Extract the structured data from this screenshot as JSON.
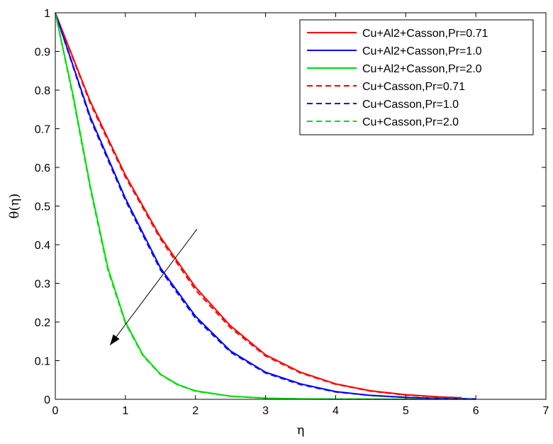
{
  "chart_data": {
    "type": "line",
    "xlabel": "η",
    "ylabel": "θ(η)",
    "xlim": [
      0,
      7
    ],
    "ylim": [
      0,
      1
    ],
    "xticks": [
      "0",
      "1",
      "2",
      "3",
      "4",
      "5",
      "6",
      "7"
    ],
    "yticks": [
      "0",
      "0.1",
      "0.2",
      "0.3",
      "0.4",
      "0.5",
      "0.6",
      "0.7",
      "0.8",
      "0.9",
      "1"
    ],
    "grid": false,
    "legend_position": "top-right",
    "series": [
      {
        "name": "Cu+Al2+Casson,Pr=0.71",
        "color": "#ff0000",
        "dash": "solid",
        "x": [
          0,
          0.5,
          1,
          1.5,
          2,
          2.5,
          3,
          3.5,
          4,
          4.5,
          5,
          5.5,
          5.8
        ],
        "y": [
          1,
          0.77,
          0.58,
          0.42,
          0.29,
          0.19,
          0.115,
          0.07,
          0.04,
          0.022,
          0.012,
          0.006,
          0.004
        ]
      },
      {
        "name": "Cu+Al2+Casson,Pr=1.0",
        "color": "#0000ff",
        "dash": "solid",
        "x": [
          0,
          0.5,
          1,
          1.5,
          2,
          2.5,
          3,
          3.5,
          4,
          4.5,
          5,
          5.5,
          6
        ],
        "y": [
          1,
          0.73,
          0.52,
          0.34,
          0.215,
          0.125,
          0.07,
          0.04,
          0.02,
          0.01,
          0.005,
          0.002,
          0.001
        ]
      },
      {
        "name": "Cu+Al2+Casson,Pr=2.0",
        "color": "#00dd00",
        "dash": "solid",
        "x": [
          0,
          0.25,
          0.5,
          0.75,
          1,
          1.25,
          1.5,
          1.75,
          2,
          2.5,
          3,
          3.5,
          4,
          5,
          6
        ],
        "y": [
          1,
          0.79,
          0.55,
          0.34,
          0.2,
          0.115,
          0.065,
          0.038,
          0.022,
          0.008,
          0.003,
          0.001,
          0.0005,
          0.0002,
          0.0001
        ]
      },
      {
        "name": "Cu+Casson,Pr=0.71",
        "color": "#ff0000",
        "dash": "dashed",
        "x": [
          0,
          0.5,
          1,
          1.5,
          2,
          2.5,
          3,
          3.5,
          4,
          4.5,
          5,
          5.5,
          5.8
        ],
        "y": [
          1,
          0.765,
          0.575,
          0.415,
          0.283,
          0.185,
          0.112,
          0.068,
          0.039,
          0.021,
          0.011,
          0.006,
          0.004
        ]
      },
      {
        "name": "Cu+Casson,Pr=1.0",
        "color": "#0000ff",
        "dash": "dashed",
        "x": [
          0,
          0.5,
          1,
          1.5,
          2,
          2.5,
          3,
          3.5,
          4,
          4.5,
          5,
          5.5,
          6
        ],
        "y": [
          1,
          0.725,
          0.515,
          0.335,
          0.21,
          0.122,
          0.068,
          0.038,
          0.019,
          0.01,
          0.005,
          0.002,
          0.001
        ]
      },
      {
        "name": "Cu+Casson,Pr=2.0",
        "color": "#00dd00",
        "dash": "dashed",
        "x": [
          0,
          0.25,
          0.5,
          0.75,
          1,
          1.25,
          1.5,
          1.75,
          2,
          2.5,
          3,
          3.5,
          4,
          5,
          6
        ],
        "y": [
          1,
          0.785,
          0.545,
          0.335,
          0.197,
          0.113,
          0.064,
          0.037,
          0.021,
          0.008,
          0.003,
          0.001,
          0.0005,
          0.0002,
          0.0001
        ]
      }
    ],
    "annotations": [
      {
        "type": "arrow",
        "from": [
          2.02,
          0.44
        ],
        "to": [
          0.78,
          0.14
        ],
        "color": "#000000"
      }
    ]
  }
}
